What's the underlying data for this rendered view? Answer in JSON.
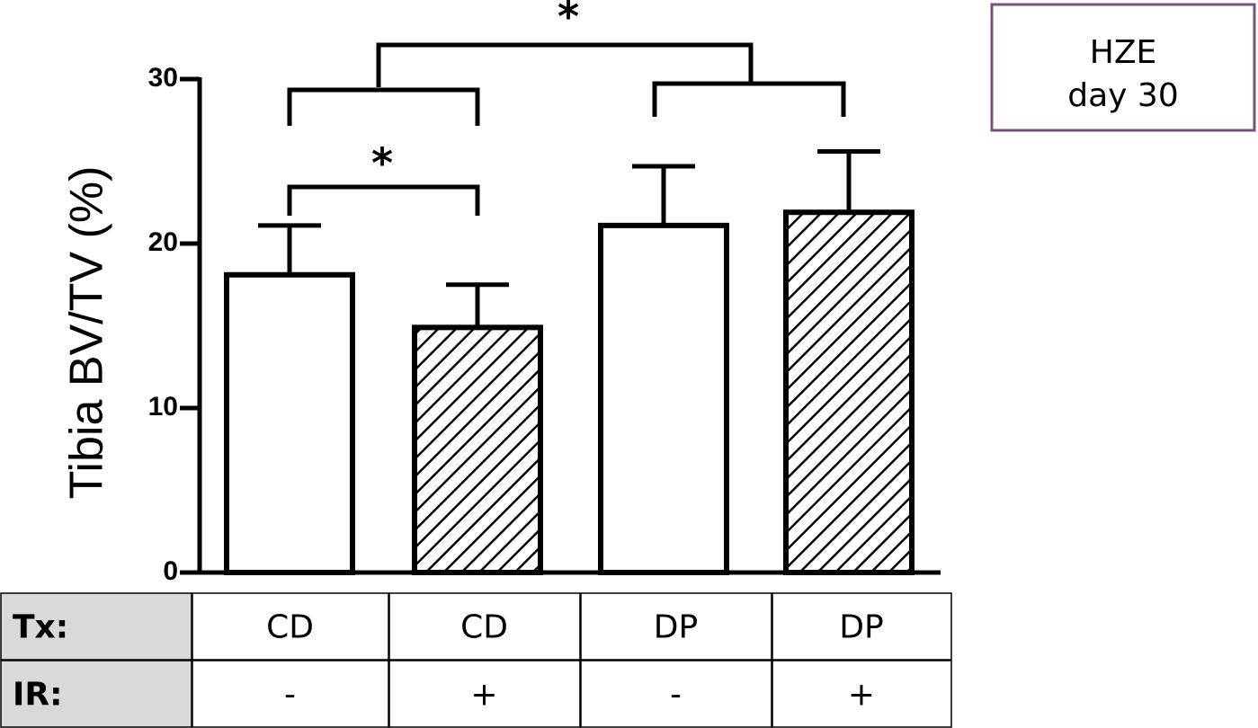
{
  "chart_data": {
    "type": "bar",
    "ylabel": "Tibia BV/TV (%)",
    "series": [
      {
        "values": [
          18.1,
          14.9,
          21.1,
          21.9
        ],
        "errors": [
          3.0,
          2.6,
          3.6,
          3.7
        ],
        "color": "#ffffff",
        "hatch": [
          false,
          true,
          false,
          true
        ]
      }
    ],
    "ylim": [
      0,
      30
    ],
    "yticks": [
      0,
      10,
      20,
      30
    ],
    "grid": false,
    "annotations": [
      "*",
      "*"
    ]
  },
  "table": {
    "rows": [
      [
        "Tx:",
        "CD",
        "CD",
        "DP",
        "DP"
      ],
      [
        "IR:",
        "-",
        "+",
        "-",
        "+"
      ]
    ]
  },
  "box": {
    "lines": [
      "HZE",
      "day 30"
    ]
  }
}
